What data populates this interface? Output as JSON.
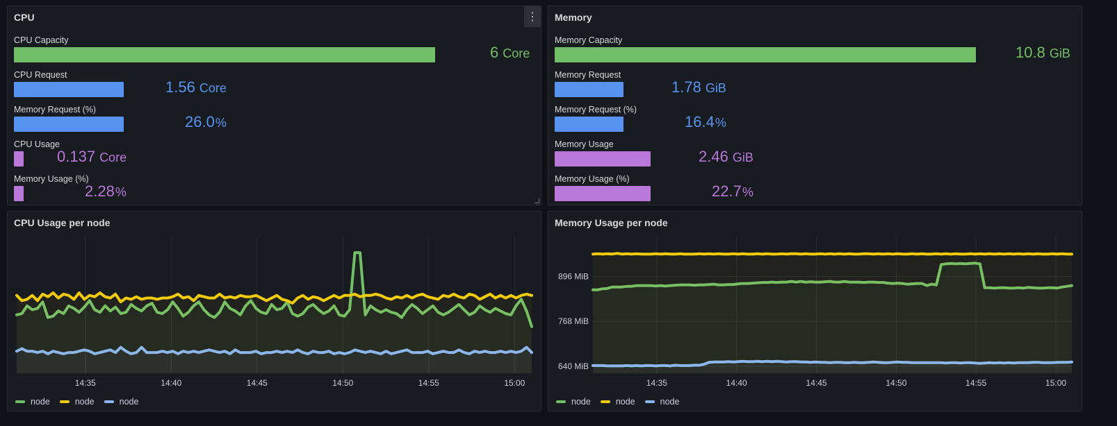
{
  "cpu_panel": {
    "title": "CPU",
    "gauges": [
      {
        "label": "CPU Capacity",
        "value": "6",
        "unit": "Core",
        "fill": 1.0,
        "color": "#73bf69"
      },
      {
        "label": "CPU Request",
        "value": "1.56",
        "unit": "Core",
        "fill": 0.26,
        "color": "#5794f2"
      },
      {
        "label": "Memory Request (%)",
        "value": "26.0",
        "unit": "%",
        "fill": 0.26,
        "color": "#5794f2"
      },
      {
        "label": "CPU Usage",
        "value": "0.137",
        "unit": "Core",
        "fill": 0.0228,
        "color": "#b877d9"
      },
      {
        "label": "Memory Usage (%)",
        "value": "2.28",
        "unit": "%",
        "fill": 0.0228,
        "color": "#b877d9"
      }
    ]
  },
  "memory_panel": {
    "title": "Memory",
    "gauges": [
      {
        "label": "Memory Capacity",
        "value": "10.8",
        "unit": "GiB",
        "fill": 1.0,
        "color": "#73bf69"
      },
      {
        "label": "Memory Request",
        "value": "1.78",
        "unit": "GiB",
        "fill": 0.164,
        "color": "#5794f2"
      },
      {
        "label": "Memory Request (%)",
        "value": "16.4",
        "unit": "%",
        "fill": 0.164,
        "color": "#5794f2"
      },
      {
        "label": "Memory Usage",
        "value": "2.46",
        "unit": "GiB",
        "fill": 0.227,
        "color": "#b877d9"
      },
      {
        "label": "Memory Usage (%)",
        "value": "22.7",
        "unit": "%",
        "fill": 0.227,
        "color": "#b877d9"
      }
    ]
  },
  "cpu_chart": {
    "title": "CPU Usage per node",
    "legend": [
      {
        "label": "node",
        "color": "#73bf69"
      },
      {
        "label": "node",
        "color": "#f2cc0c"
      },
      {
        "label": "node",
        "color": "#8ab8ff"
      }
    ]
  },
  "mem_chart": {
    "title": "Memory Usage per node",
    "legend": [
      {
        "label": "node",
        "color": "#73bf69"
      },
      {
        "label": "node",
        "color": "#f2cc0c"
      },
      {
        "label": "node",
        "color": "#8ab8ff"
      }
    ]
  },
  "chart_data": [
    {
      "type": "line",
      "title": "CPU Usage per node",
      "x_start": "14:31",
      "x_end": "15:01",
      "xticks": [
        "14:35",
        "14:40",
        "14:45",
        "14:50",
        "14:55",
        "15:00"
      ],
      "yticks": [],
      "ylim": [
        0,
        1
      ],
      "grid": true,
      "legend_position": "bottom-left",
      "series": [
        {
          "name": "node",
          "color": "#73bf69",
          "values": [
            0.45,
            0.46,
            0.52,
            0.49,
            0.5,
            0.55,
            0.43,
            0.44,
            0.48,
            0.46,
            0.52,
            0.5,
            0.47,
            0.51,
            0.56,
            0.49,
            0.47,
            0.52,
            0.48,
            0.51,
            0.46,
            0.47,
            0.53,
            0.5,
            0.48,
            0.52,
            0.54,
            0.47,
            0.46,
            0.49,
            0.55,
            0.5,
            0.44,
            0.47,
            0.52,
            0.55,
            0.49,
            0.45,
            0.43,
            0.47,
            0.55,
            0.5,
            0.48,
            0.45,
            0.52,
            0.56,
            0.5,
            0.47,
            0.46,
            0.53,
            0.49,
            0.5,
            0.55,
            0.46,
            0.44,
            0.46,
            0.51,
            0.53,
            0.49,
            0.46,
            0.48,
            0.52,
            0.45,
            0.44,
            0.49,
            0.93,
            0.93,
            0.45,
            0.52,
            0.49,
            0.47,
            0.49,
            0.47,
            0.46,
            0.43,
            0.49,
            0.53,
            0.5,
            0.46,
            0.49,
            0.52,
            0.47,
            0.45,
            0.47,
            0.5,
            0.53,
            0.49,
            0.45,
            0.47,
            0.52,
            0.49,
            0.47,
            0.5,
            0.48,
            0.46,
            0.45,
            0.52,
            0.57,
            0.48,
            0.36
          ]
        },
        {
          "name": "node",
          "color": "#f2cc0c",
          "values": [
            0.6,
            0.56,
            0.57,
            0.6,
            0.56,
            0.61,
            0.59,
            0.62,
            0.58,
            0.61,
            0.6,
            0.57,
            0.62,
            0.57,
            0.6,
            0.59,
            0.62,
            0.59,
            0.58,
            0.61,
            0.55,
            0.58,
            0.57,
            0.59,
            0.57,
            0.58,
            0.58,
            0.57,
            0.58,
            0.58,
            0.59,
            0.61,
            0.58,
            0.59,
            0.56,
            0.6,
            0.59,
            0.58,
            0.58,
            0.61,
            0.58,
            0.59,
            0.58,
            0.6,
            0.59,
            0.59,
            0.6,
            0.58,
            0.56,
            0.58,
            0.6,
            0.57,
            0.56,
            0.54,
            0.58,
            0.6,
            0.57,
            0.59,
            0.58,
            0.56,
            0.58,
            0.6,
            0.58,
            0.6,
            0.6,
            0.61,
            0.59,
            0.6,
            0.6,
            0.61,
            0.6,
            0.58,
            0.57,
            0.59,
            0.58,
            0.6,
            0.58,
            0.6,
            0.61,
            0.59,
            0.58,
            0.57,
            0.6,
            0.59,
            0.61,
            0.59,
            0.58,
            0.61,
            0.6,
            0.57,
            0.59,
            0.61,
            0.58,
            0.6,
            0.58,
            0.6,
            0.58,
            0.6,
            0.61,
            0.6
          ]
        },
        {
          "name": "node",
          "color": "#8ab8ff",
          "values": [
            0.17,
            0.19,
            0.17,
            0.17,
            0.16,
            0.17,
            0.15,
            0.17,
            0.16,
            0.15,
            0.16,
            0.16,
            0.17,
            0.18,
            0.17,
            0.15,
            0.16,
            0.17,
            0.18,
            0.16,
            0.2,
            0.17,
            0.15,
            0.16,
            0.2,
            0.16,
            0.16,
            0.16,
            0.17,
            0.16,
            0.17,
            0.15,
            0.17,
            0.16,
            0.17,
            0.16,
            0.17,
            0.18,
            0.17,
            0.16,
            0.17,
            0.15,
            0.18,
            0.16,
            0.16,
            0.16,
            0.17,
            0.15,
            0.16,
            0.16,
            0.17,
            0.16,
            0.17,
            0.16,
            0.18,
            0.16,
            0.15,
            0.17,
            0.16,
            0.16,
            0.17,
            0.15,
            0.16,
            0.15,
            0.16,
            0.18,
            0.17,
            0.16,
            0.17,
            0.16,
            0.15,
            0.17,
            0.15,
            0.16,
            0.17,
            0.18,
            0.16,
            0.16,
            0.16,
            0.17,
            0.15,
            0.16,
            0.17,
            0.16,
            0.16,
            0.18,
            0.16,
            0.15,
            0.17,
            0.16,
            0.17,
            0.16,
            0.16,
            0.17,
            0.16,
            0.17,
            0.16,
            0.17,
            0.2,
            0.16
          ]
        }
      ]
    },
    {
      "type": "line",
      "title": "Memory Usage per node",
      "x_start": "14:31",
      "x_end": "15:01",
      "xticks": [
        "14:35",
        "14:40",
        "14:45",
        "14:50",
        "14:55",
        "15:00"
      ],
      "yticks": [
        "640 MiB",
        "768 MiB",
        "896 MiB"
      ],
      "ylim": [
        620,
        990
      ],
      "grid": true,
      "legend_position": "bottom-left",
      "series": [
        {
          "name": "node",
          "color": "#73bf69",
          "values": [
            858,
            858,
            861,
            862,
            866,
            866,
            866,
            868,
            868,
            870,
            870,
            870,
            870,
            869,
            870,
            869,
            870,
            871,
            872,
            872,
            872,
            871,
            872,
            872,
            873,
            874,
            872,
            872,
            873,
            873,
            875,
            876,
            876,
            877,
            878,
            879,
            879,
            880,
            879,
            880,
            880,
            882,
            880,
            882,
            880,
            881,
            880,
            880,
            881,
            882,
            880,
            880,
            882,
            880,
            880,
            880,
            879,
            880,
            880,
            879,
            879,
            877,
            876,
            877,
            876,
            874,
            875,
            876,
            876,
            870,
            874,
            872,
            930,
            932,
            933,
            932,
            933,
            932,
            933,
            934,
            932,
            864,
            864,
            863,
            864,
            864,
            863,
            863,
            864,
            863,
            865,
            864,
            863,
            863,
            864,
            864,
            863,
            866,
            868,
            870
          ]
        },
        {
          "name": "node",
          "color": "#f2cc0c",
          "values": [
            960,
            961,
            960,
            961,
            960,
            962,
            960,
            961,
            960,
            961,
            960,
            960,
            960,
            961,
            960,
            961,
            960,
            960,
            961,
            960,
            960,
            960,
            961,
            960,
            961,
            960,
            961,
            960,
            960,
            961,
            960,
            961,
            960,
            960,
            961,
            960,
            961,
            960,
            960,
            961,
            960,
            961,
            961,
            960,
            961,
            960,
            960,
            961,
            960,
            961,
            960,
            961,
            960,
            961,
            960,
            960,
            961,
            961,
            960,
            961,
            960,
            961,
            960,
            961,
            960,
            960,
            961,
            960,
            961,
            960,
            960,
            961,
            960,
            961,
            960,
            961,
            960,
            960,
            961,
            960,
            961,
            960,
            961,
            960,
            961,
            960,
            961,
            960,
            961,
            960,
            961,
            960,
            961,
            960,
            960,
            961,
            960,
            961,
            960,
            960
          ]
        },
        {
          "name": "node",
          "color": "#8ab8ff",
          "values": [
            642,
            642,
            642,
            641,
            641,
            641,
            641,
            642,
            641,
            642,
            641,
            642,
            642,
            641,
            642,
            642,
            641,
            643,
            642,
            642,
            642,
            643,
            643,
            646,
            651,
            652,
            652,
            652,
            653,
            652,
            653,
            654,
            653,
            653,
            654,
            653,
            654,
            653,
            654,
            653,
            652,
            653,
            653,
            652,
            652,
            651,
            652,
            651,
            651,
            650,
            651,
            651,
            650,
            650,
            651,
            650,
            650,
            651,
            652,
            651,
            650,
            650,
            651,
            652,
            651,
            651,
            650,
            650,
            650,
            650,
            650,
            650,
            650,
            649,
            650,
            650,
            649,
            650,
            650,
            649,
            648,
            649,
            650,
            649,
            650,
            649,
            650,
            649,
            650,
            650,
            650,
            651,
            651,
            650,
            650,
            650,
            651,
            651,
            651,
            652
          ]
        }
      ]
    }
  ]
}
